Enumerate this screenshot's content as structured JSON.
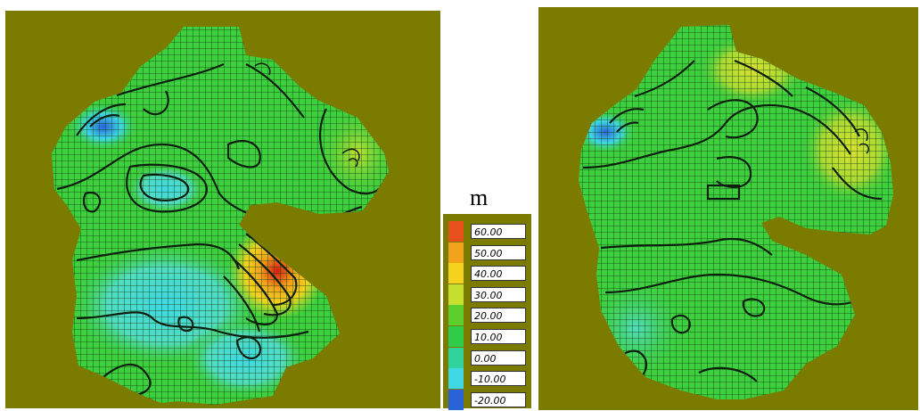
{
  "unit": "m",
  "legend": {
    "items": [
      {
        "label": "60.00",
        "color": "#e8501e"
      },
      {
        "label": "50.00",
        "color": "#f2a31c"
      },
      {
        "label": "40.00",
        "color": "#f4d21e"
      },
      {
        "label": "30.00",
        "color": "#c7e030"
      },
      {
        "label": "20.00",
        "color": "#5ccf2c"
      },
      {
        "label": "10.00",
        "color": "#2fcc4a"
      },
      {
        "label": "0.00",
        "color": "#2ed29a"
      },
      {
        "label": "-10.00",
        "color": "#3fd8e4"
      },
      {
        "label": "-20.00",
        "color": "#2a63d8"
      }
    ]
  },
  "colors": {
    "background": "#7b7b00",
    "base_field": "#3ecf3e",
    "grid": "#0b3a0b",
    "contour": "#0d1f0d"
  }
}
